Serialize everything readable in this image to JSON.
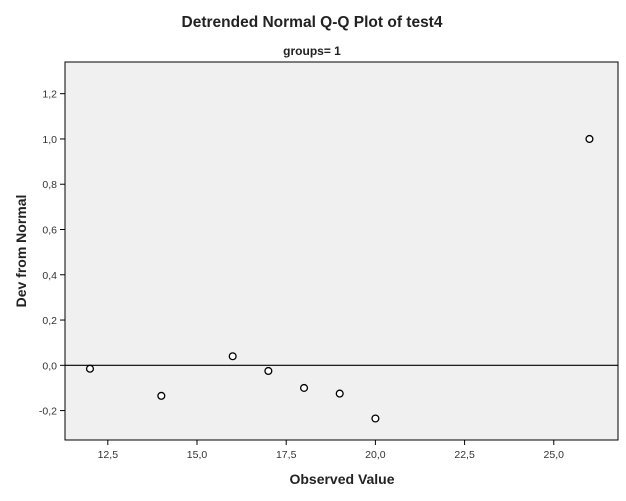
{
  "chart_data": {
    "type": "scatter",
    "title": "Detrended Normal Q-Q Plot of test4",
    "subtitle": "groups= 1",
    "xlabel": "Observed Value",
    "ylabel": "Dev from Normal",
    "xlim": [
      11.3,
      26.8
    ],
    "ylim": [
      -0.33,
      1.34
    ],
    "x_ticks": [
      12.5,
      15.0,
      17.5,
      20.0,
      22.5,
      25.0
    ],
    "x_tick_labels": [
      "12,5",
      "15,0",
      "17,5",
      "20,0",
      "22,5",
      "25,0"
    ],
    "y_ticks": [
      -0.2,
      0.0,
      0.2,
      0.4,
      0.6,
      0.8,
      1.0,
      1.2
    ],
    "y_tick_labels": [
      "-0,2",
      "0,0",
      "0,2",
      "0,4",
      "0,6",
      "0,8",
      "1,0",
      "1,2"
    ],
    "reference_line": 0.0,
    "grid": false,
    "points": [
      {
        "x": 12,
        "y": -0.015
      },
      {
        "x": 14,
        "y": -0.135
      },
      {
        "x": 16,
        "y": 0.04
      },
      {
        "x": 17,
        "y": -0.025
      },
      {
        "x": 18,
        "y": -0.1
      },
      {
        "x": 19,
        "y": -0.125
      },
      {
        "x": 20,
        "y": -0.235
      },
      {
        "x": 26,
        "y": 1.0
      }
    ],
    "colors": {
      "plot_background": "#f0f0f0",
      "frame": "#000000",
      "marker_stroke": "#000000",
      "marker_fill": "#ffffff",
      "reference_line": "#000000"
    }
  }
}
